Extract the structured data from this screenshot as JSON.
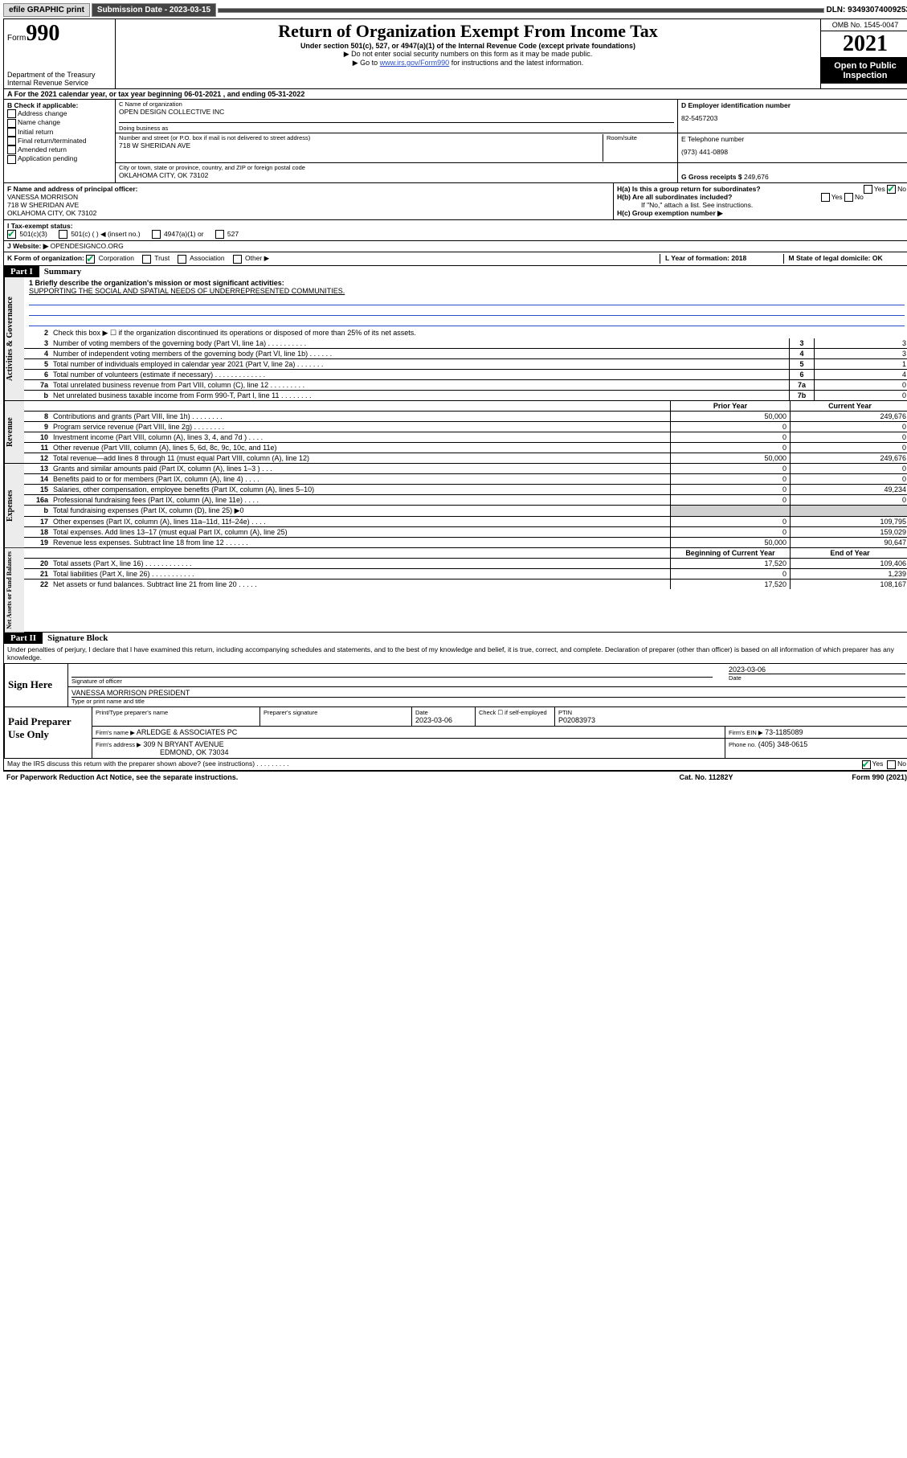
{
  "topbar": {
    "efile": "efile GRAPHIC print",
    "submission_label": "Submission Date - 2023-03-15",
    "dln": "DLN: 93493074009253"
  },
  "header": {
    "form_small": "Form",
    "form_big": "990",
    "title": "Return of Organization Exempt From Income Tax",
    "sub1": "Under section 501(c), 527, or 4947(a)(1) of the Internal Revenue Code (except private foundations)",
    "sub2": "▶ Do not enter social security numbers on this form as it may be made public.",
    "sub3_pre": "▶ Go to ",
    "sub3_link": "www.irs.gov/Form990",
    "sub3_post": " for instructions and the latest information.",
    "dept": "Department of the Treasury\nInternal Revenue Service",
    "omb": "OMB No. 1545-0047",
    "year": "2021",
    "open": "Open to Public Inspection"
  },
  "rowA": "A For the 2021 calendar year, or tax year beginning 06-01-2021   , and ending 05-31-2022",
  "b": {
    "label": "B Check if applicable:",
    "items": [
      "Address change",
      "Name change",
      "Initial return",
      "Final return/terminated",
      "Amended return",
      "Application pending"
    ]
  },
  "c": {
    "name_label": "C Name of organization",
    "name": "OPEN DESIGN COLLECTIVE INC",
    "dba_label": "Doing business as",
    "addr_label": "Number and street (or P.O. box if mail is not delivered to street address)",
    "room_label": "Room/suite",
    "addr": "718 W SHERIDAN AVE",
    "city_label": "City or town, state or province, country, and ZIP or foreign postal code",
    "city": "OKLAHOMA CITY, OK   73102"
  },
  "d": {
    "label": "D Employer identification number",
    "val": "82-5457203"
  },
  "e": {
    "label": "E Telephone number",
    "val": "(973) 441-0898"
  },
  "g": {
    "label": "G Gross receipts $",
    "val": "249,676"
  },
  "f": {
    "label": "F Name and address of principal officer:",
    "name": "VANESSA MORRISON",
    "addr1": "718 W SHERIDAN AVE",
    "addr2": "OKLAHOMA CITY, OK  73102"
  },
  "h": {
    "a": "H(a)  Is this a group return for subordinates?",
    "a_no": "No",
    "b": "H(b)  Are all subordinates included?",
    "b_note": "If \"No,\" attach a list. See instructions.",
    "c": "H(c)  Group exemption number ▶"
  },
  "i": {
    "label": "I   Tax-exempt status:",
    "opts": [
      "501(c)(3)",
      "501(c) (  ) ◀ (insert no.)",
      "4947(a)(1) or",
      "527"
    ]
  },
  "j": {
    "label": "J   Website: ▶",
    "val": "OPENDESIGNCO.ORG"
  },
  "k": {
    "label": "K Form of organization:",
    "opts": [
      "Corporation",
      "Trust",
      "Association",
      "Other ▶"
    ]
  },
  "l": {
    "label": "L Year of formation: 2018"
  },
  "m": {
    "label": "M State of legal domicile: OK"
  },
  "part1": {
    "label": "Part I",
    "title": "Summary"
  },
  "mission": {
    "q1": "1   Briefly describe the organization's mission or most significant activities:",
    "text": "SUPPORTING THE SOCIAL AND SPATIAL NEEDS OF UNDERREPRESENTED COMMUNITIES."
  },
  "gov_rows": [
    {
      "n": "2",
      "d": "Check this box ▶ ☐  if the organization discontinued its operations or disposed of more than 25% of its net assets.",
      "box": "",
      "v": ""
    },
    {
      "n": "3",
      "d": "Number of voting members of the governing body (Part VI, line 1a)   .    .    .    .    .    .    .    .    .    .",
      "box": "3",
      "v": "3"
    },
    {
      "n": "4",
      "d": "Number of independent voting members of the governing body (Part VI, line 1b)   .    .    .    .    .    .",
      "box": "4",
      "v": "3"
    },
    {
      "n": "5",
      "d": "Total number of individuals employed in calendar year 2021 (Part V, line 2a)   .    .    .    .    .    .    .",
      "box": "5",
      "v": "1"
    },
    {
      "n": "6",
      "d": "Total number of volunteers (estimate if necessary)   .    .    .    .    .    .    .    .    .    .    .    .    .",
      "box": "6",
      "v": "4"
    },
    {
      "n": "7a",
      "d": "Total unrelated business revenue from Part VIII, column (C), line 12   .    .    .    .    .    .    .    .    .",
      "box": "7a",
      "v": "0"
    },
    {
      "n": "b",
      "d": "Net unrelated business taxable income from Form 990-T, Part I, line 11   .    .    .    .    .    .    .    .",
      "box": "7b",
      "v": "0"
    }
  ],
  "rev_hdr": {
    "p": "Prior Year",
    "c": "Current Year"
  },
  "rev_rows": [
    {
      "n": "8",
      "d": "Contributions and grants (Part VIII, line 1h)   .    .    .    .    .    .    .    .",
      "p": "50,000",
      "c": "249,676"
    },
    {
      "n": "9",
      "d": "Program service revenue (Part VIII, line 2g)   .    .    .    .    .    .    .    .",
      "p": "0",
      "c": "0"
    },
    {
      "n": "10",
      "d": "Investment income (Part VIII, column (A), lines 3, 4, and 7d )   .    .    .    .",
      "p": "0",
      "c": "0"
    },
    {
      "n": "11",
      "d": "Other revenue (Part VIII, column (A), lines 5, 6d, 8c, 9c, 10c, and 11e)",
      "p": "0",
      "c": "0"
    },
    {
      "n": "12",
      "d": "Total revenue—add lines 8 through 11 (must equal Part VIII, column (A), line 12)",
      "p": "50,000",
      "c": "249,676"
    }
  ],
  "exp_rows": [
    {
      "n": "13",
      "d": "Grants and similar amounts paid (Part IX, column (A), lines 1–3 )   .    .    .",
      "p": "0",
      "c": "0"
    },
    {
      "n": "14",
      "d": "Benefits paid to or for members (Part IX, column (A), line 4)   .    .    .    .",
      "p": "0",
      "c": "0"
    },
    {
      "n": "15",
      "d": "Salaries, other compensation, employee benefits (Part IX, column (A), lines 5–10)",
      "p": "0",
      "c": "49,234"
    },
    {
      "n": "16a",
      "d": "Professional fundraising fees (Part IX, column (A), line 11e)   .    .    .    .",
      "p": "0",
      "c": "0"
    },
    {
      "n": "b",
      "d": "Total fundraising expenses (Part IX, column (D), line 25) ▶0",
      "p": "grey",
      "c": "grey"
    },
    {
      "n": "17",
      "d": "Other expenses (Part IX, column (A), lines 11a–11d, 11f–24e)   .    .    .    .",
      "p": "0",
      "c": "109,795"
    },
    {
      "n": "18",
      "d": "Total expenses. Add lines 13–17 (must equal Part IX, column (A), line 25)",
      "p": "0",
      "c": "159,029"
    },
    {
      "n": "19",
      "d": "Revenue less expenses. Subtract line 18 from line 12   .    .    .    .    .    .",
      "p": "50,000",
      "c": "90,647"
    }
  ],
  "na_hdr": {
    "p": "Beginning of Current Year",
    "c": "End of Year"
  },
  "na_rows": [
    {
      "n": "20",
      "d": "Total assets (Part X, line 16)   .    .    .    .    .    .    .    .    .    .    .    .",
      "p": "17,520",
      "c": "109,406"
    },
    {
      "n": "21",
      "d": "Total liabilities (Part X, line 26)   .    .    .    .    .    .    .    .    .    .    .",
      "p": "0",
      "c": "1,239"
    },
    {
      "n": "22",
      "d": "Net assets or fund balances. Subtract line 21 from line 20   .    .    .    .    .",
      "p": "17,520",
      "c": "108,167"
    }
  ],
  "part2": {
    "label": "Part II",
    "title": "Signature Block"
  },
  "penalty": "Under penalties of perjury, I declare that I have examined this return, including accompanying schedules and statements, and to the best of my knowledge and belief, it is true, correct, and complete. Declaration of preparer (other than officer) is based on all information of which preparer has any knowledge.",
  "sign": {
    "label": "Sign Here",
    "sig_of": "Signature of officer",
    "date_label": "Date",
    "date": "2023-03-06",
    "name": "VANESSA MORRISON  PRESIDENT",
    "name_label": "Type or print name and title"
  },
  "paid": {
    "label": "Paid Preparer Use Only",
    "h1": "Print/Type preparer's name",
    "h2": "Preparer's signature",
    "h3": "Date",
    "h3v": "2023-03-06",
    "h4": "Check ☐ if self-employed",
    "h5": "PTIN",
    "h5v": "P02083973",
    "firm_label": "Firm's name    ▶",
    "firm": "ARLEDGE & ASSOCIATES PC",
    "ein_label": "Firm's EIN ▶",
    "ein": "73-1185089",
    "addr_label": "Firm's address ▶",
    "addr1": "309 N BRYANT AVENUE",
    "addr2": "EDMOND, OK  73034",
    "phone_label": "Phone no.",
    "phone": "(405) 348-0615"
  },
  "may": "May the IRS discuss this return with the preparer shown above? (see instructions)   .    .    .    .    .    .    .    .    .",
  "footer": {
    "left": "For Paperwork Reduction Act Notice, see the separate instructions.",
    "mid": "Cat. No. 11282Y",
    "right": "Form 990 (2021)"
  },
  "sidelabels": {
    "gov": "Activities & Governance",
    "rev": "Revenue",
    "exp": "Expenses",
    "na": "Net Assets or Fund Balances"
  }
}
